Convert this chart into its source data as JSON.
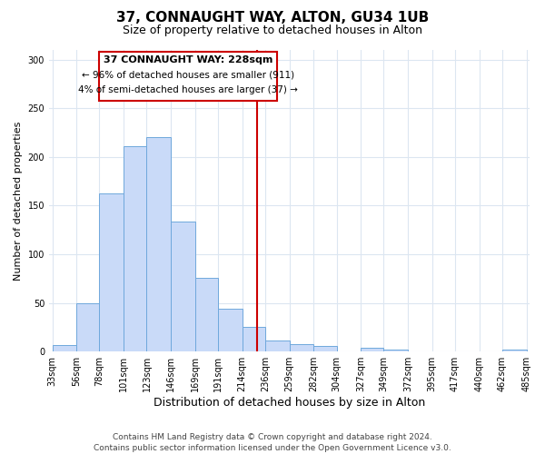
{
  "title": "37, CONNAUGHT WAY, ALTON, GU34 1UB",
  "subtitle": "Size of property relative to detached houses in Alton",
  "xlabel": "Distribution of detached houses by size in Alton",
  "ylabel": "Number of detached properties",
  "bin_edges": [
    33,
    56,
    78,
    101,
    123,
    146,
    169,
    191,
    214,
    236,
    259,
    282,
    304,
    327,
    349,
    372,
    395,
    417,
    440,
    462,
    485
  ],
  "bar_heights": [
    7,
    50,
    163,
    211,
    220,
    134,
    76,
    44,
    25,
    11,
    8,
    6,
    0,
    4,
    2,
    0,
    0,
    0,
    0,
    2
  ],
  "bar_color": "#c9daf8",
  "bar_edge_color": "#6fa8dc",
  "vline_x": 228,
  "vline_color": "#cc0000",
  "annotation_title": "37 CONNAUGHT WAY: 228sqm",
  "annotation_line1": "← 96% of detached houses are smaller (911)",
  "annotation_line2": "4% of semi-detached houses are larger (37) →",
  "annotation_box_color": "#cc0000",
  "annotation_text_color": "#000000",
  "annotation_bg_color": "#ffffff",
  "tick_labels": [
    "33sqm",
    "56sqm",
    "78sqm",
    "101sqm",
    "123sqm",
    "146sqm",
    "169sqm",
    "191sqm",
    "214sqm",
    "236sqm",
    "259sqm",
    "282sqm",
    "304sqm",
    "327sqm",
    "349sqm",
    "372sqm",
    "395sqm",
    "417sqm",
    "440sqm",
    "462sqm",
    "485sqm"
  ],
  "yticks": [
    0,
    50,
    100,
    150,
    200,
    250,
    300
  ],
  "ylim": [
    0,
    310
  ],
  "footer_line1": "Contains HM Land Registry data © Crown copyright and database right 2024.",
  "footer_line2": "Contains public sector information licensed under the Open Government Licence v3.0.",
  "bg_color": "#ffffff",
  "grid_color": "#dce6f1",
  "title_fontsize": 11,
  "subtitle_fontsize": 9,
  "xlabel_fontsize": 9,
  "ylabel_fontsize": 8,
  "tick_fontsize": 7,
  "footer_fontsize": 6.5,
  "ann_title_fontsize": 8,
  "ann_text_fontsize": 7.5
}
